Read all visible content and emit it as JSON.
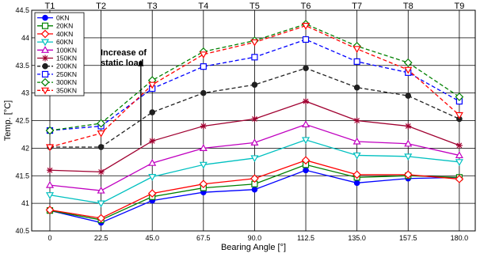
{
  "chart_data": {
    "type": "line",
    "title": "",
    "xlabel": "Bearing Angle [°]",
    "ylabel": "Temp. [°C]",
    "x": [
      0,
      22.5,
      45.0,
      67.5,
      90.0,
      112.5,
      135.0,
      157.5,
      180.0
    ],
    "x_tick_labels": [
      "0",
      "22.5",
      "45.0",
      "67.5",
      "90.0",
      "112.5",
      "135.0",
      "157.5",
      "180.0"
    ],
    "top_tick_labels": [
      "T1",
      "T2",
      "T3",
      "T4",
      "T5",
      "T6",
      "T7",
      "T8",
      "T9"
    ],
    "xlim": [
      -8,
      187
    ],
    "ylim": [
      40.5,
      44.5
    ],
    "y_ticks": [
      40.5,
      41,
      41.5,
      42,
      42.5,
      43,
      43.5,
      44,
      44.5
    ],
    "y_tick_labels": [
      "40.5",
      "41",
      "41.5",
      "42",
      "42.5",
      "43",
      "43.5",
      "44",
      "44.5"
    ],
    "grid": true,
    "legend_position": "top-left",
    "annotation": {
      "text_line1": "Increase of",
      "text_line2": "static load",
      "arrow_from": {
        "x": 40,
        "y": 42.05
      },
      "arrow_to": {
        "x": 40,
        "y": 43.6
      }
    },
    "series": [
      {
        "name": "0KN",
        "color": "#0000ff",
        "dash": "solid",
        "marker": "circle-filled",
        "values": [
          40.87,
          40.65,
          41.05,
          41.2,
          41.25,
          41.6,
          41.37,
          41.45,
          41.47
        ]
      },
      {
        "name": "20KN",
        "color": "#008000",
        "dash": "solid",
        "marker": "square-open",
        "values": [
          40.87,
          40.7,
          41.12,
          41.28,
          41.35,
          41.7,
          41.47,
          41.5,
          41.47
        ]
      },
      {
        "name": "40KN",
        "color": "#ff0000",
        "dash": "solid",
        "marker": "diamond-open",
        "values": [
          40.88,
          40.73,
          41.18,
          41.35,
          41.45,
          41.78,
          41.52,
          41.52,
          41.44
        ]
      },
      {
        "name": "60KN",
        "color": "#00c0c0",
        "dash": "solid",
        "marker": "triangle-down-open",
        "values": [
          41.15,
          41.0,
          41.48,
          41.7,
          41.82,
          42.15,
          41.87,
          41.85,
          41.75
        ]
      },
      {
        "name": "100KN",
        "color": "#c000c0",
        "dash": "solid",
        "marker": "triangle-up-open",
        "values": [
          41.33,
          41.23,
          41.73,
          42.0,
          42.1,
          42.43,
          42.12,
          42.08,
          41.87
        ]
      },
      {
        "name": "150KN",
        "color": "#a00030",
        "dash": "solid",
        "marker": "star",
        "values": [
          41.6,
          41.57,
          42.13,
          42.4,
          42.53,
          42.85,
          42.5,
          42.4,
          42.05
        ]
      },
      {
        "name": "200KN",
        "color": "#202020",
        "dash": "dashed",
        "marker": "circle-filled",
        "values": [
          42.02,
          42.02,
          42.65,
          43.0,
          43.15,
          43.45,
          43.1,
          42.95,
          42.53
        ]
      },
      {
        "name": "250KN",
        "color": "#0000ff",
        "dash": "dashed",
        "marker": "square-open",
        "values": [
          42.32,
          42.4,
          43.08,
          43.48,
          43.65,
          43.97,
          43.57,
          43.37,
          42.85
        ]
      },
      {
        "name": "300KN",
        "color": "#008000",
        "dash": "dashed",
        "marker": "diamond-open",
        "values": [
          42.32,
          42.45,
          43.23,
          43.75,
          43.95,
          44.25,
          43.85,
          43.55,
          42.93
        ]
      },
      {
        "name": "350KN",
        "color": "#ff0000",
        "dash": "dashed",
        "marker": "triangle-down-open",
        "values": [
          42.02,
          42.27,
          43.15,
          43.7,
          43.92,
          44.22,
          43.8,
          43.42,
          42.6
        ]
      }
    ]
  }
}
